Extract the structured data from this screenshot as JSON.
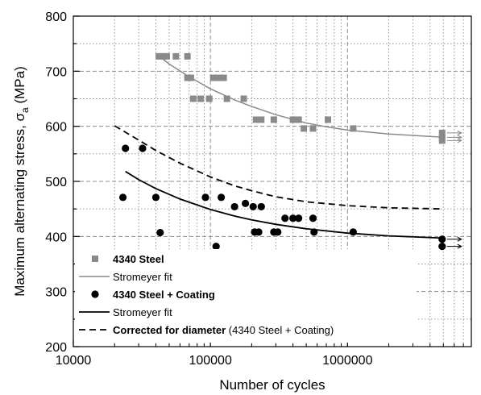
{
  "chart_data": {
    "type": "scatter",
    "xscale": "log",
    "xlim": [
      10000,
      8000000
    ],
    "ylim": [
      200,
      800
    ],
    "xlabel": "Number of cycles",
    "ylabel_main": "Maximum alternating stress, σ",
    "ylabel_sub": "a",
    "ylabel_unit": " (MPa)",
    "xticks": [
      10000,
      100000,
      1000000
    ],
    "xtick_labels": [
      "10000",
      "100000",
      "1000000"
    ],
    "yticks": [
      200,
      300,
      400,
      500,
      600,
      700,
      800
    ],
    "ytick_labels": [
      "200",
      "300",
      "400",
      "500",
      "600",
      "700",
      "800"
    ],
    "grid": true,
    "legend_position": "bottom-left",
    "colors": {
      "steel": "#8a8a8a",
      "coating": "#000000",
      "grid": "#8c8c8c"
    },
    "series": [
      {
        "name": "4340 Steel",
        "kind": "points",
        "marker": "square",
        "points": [
          [
            42000,
            727
          ],
          [
            45000,
            727
          ],
          [
            48000,
            727
          ],
          [
            56000,
            727
          ],
          [
            68000,
            727
          ],
          [
            68000,
            688
          ],
          [
            72000,
            688
          ],
          [
            105000,
            688
          ],
          [
            115000,
            688
          ],
          [
            125000,
            688
          ],
          [
            75000,
            650
          ],
          [
            85000,
            650
          ],
          [
            98000,
            650
          ],
          [
            132000,
            650
          ],
          [
            175000,
            650
          ],
          [
            215000,
            612
          ],
          [
            235000,
            612
          ],
          [
            290000,
            612
          ],
          [
            400000,
            612
          ],
          [
            440000,
            612
          ],
          [
            720000,
            612
          ],
          [
            480000,
            596
          ],
          [
            560000,
            596
          ],
          [
            1100000,
            596
          ],
          [
            4900000,
            588
          ],
          [
            4900000,
            580
          ],
          [
            4900000,
            574
          ]
        ]
      },
      {
        "name": "Stromeyer fit",
        "kind": "line",
        "style": "solid-grey",
        "points": [
          [
            40000,
            732
          ],
          [
            50000,
            713
          ],
          [
            70000,
            690
          ],
          [
            100000,
            668
          ],
          [
            150000,
            648
          ],
          [
            200000,
            636
          ],
          [
            300000,
            621
          ],
          [
            500000,
            606
          ],
          [
            700000,
            599
          ],
          [
            1000000,
            593
          ],
          [
            2000000,
            586
          ],
          [
            5000000,
            580
          ]
        ]
      },
      {
        "name": "4340 Steel + Coating",
        "kind": "points",
        "marker": "circle",
        "points": [
          [
            24000,
            560
          ],
          [
            32000,
            560
          ],
          [
            23000,
            471
          ],
          [
            40000,
            471
          ],
          [
            92000,
            471
          ],
          [
            120000,
            471
          ],
          [
            43000,
            407
          ],
          [
            110000,
            382
          ],
          [
            150000,
            454
          ],
          [
            180000,
            460
          ],
          [
            205000,
            454
          ],
          [
            235000,
            454
          ],
          [
            210000,
            408
          ],
          [
            225000,
            408
          ],
          [
            290000,
            408
          ],
          [
            310000,
            408
          ],
          [
            350000,
            433
          ],
          [
            400000,
            433
          ],
          [
            440000,
            433
          ],
          [
            560000,
            433
          ],
          [
            570000,
            408
          ],
          [
            1100000,
            408
          ],
          [
            4900000,
            395
          ],
          [
            4900000,
            382
          ]
        ]
      },
      {
        "name": "Stromeyer fit",
        "kind": "line",
        "style": "solid-black",
        "points": [
          [
            24000,
            518
          ],
          [
            30000,
            503
          ],
          [
            40000,
            487
          ],
          [
            60000,
            468
          ],
          [
            100000,
            449
          ],
          [
            150000,
            437
          ],
          [
            200000,
            430
          ],
          [
            300000,
            422
          ],
          [
            500000,
            414
          ],
          [
            1000000,
            406
          ],
          [
            2000000,
            401
          ],
          [
            5000000,
            397
          ]
        ]
      },
      {
        "name": "Corrected for diameter",
        "name_suffix": " (4340 Steel + Coating)",
        "kind": "line",
        "style": "dashed-black",
        "points": [
          [
            20000,
            601
          ],
          [
            30000,
            575
          ],
          [
            40000,
            556
          ],
          [
            60000,
            533
          ],
          [
            100000,
            508
          ],
          [
            150000,
            492
          ],
          [
            200000,
            483
          ],
          [
            300000,
            472
          ],
          [
            500000,
            463
          ],
          [
            1000000,
            456
          ],
          [
            2000000,
            452
          ],
          [
            5000000,
            450
          ]
        ]
      }
    ]
  }
}
